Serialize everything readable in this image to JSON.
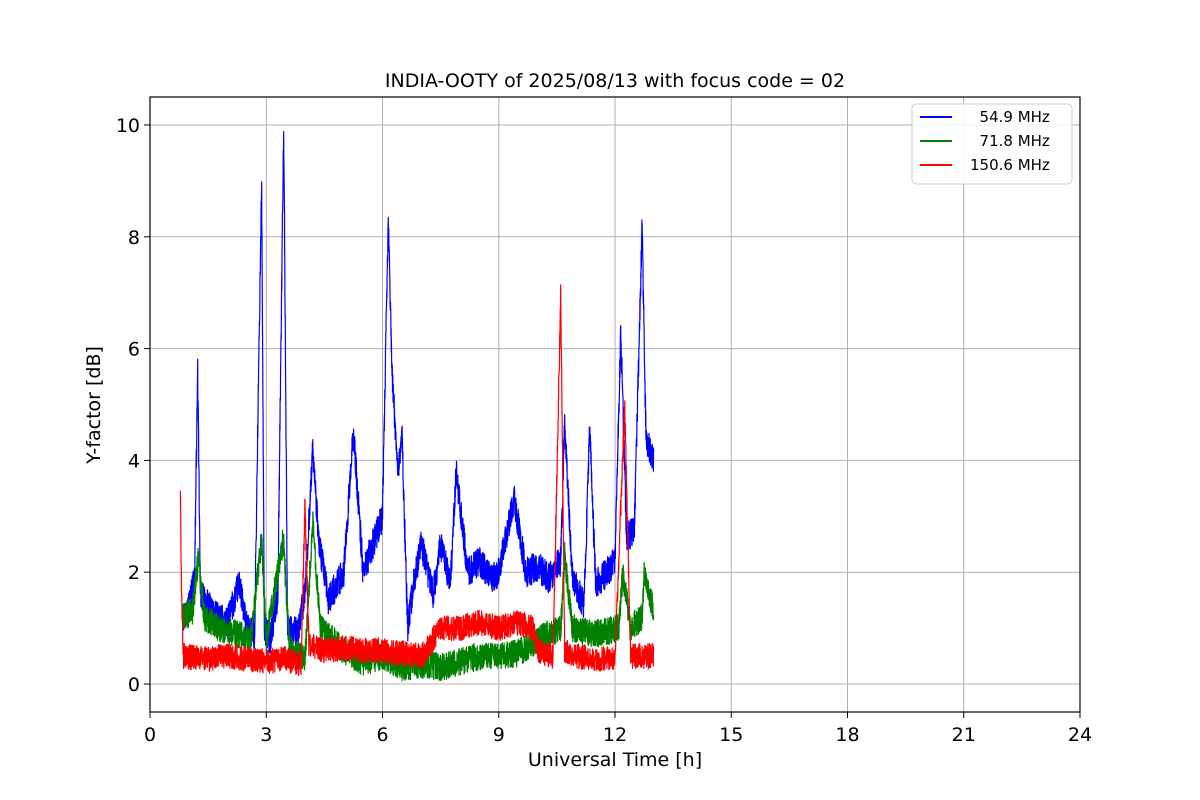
{
  "chart_data": {
    "type": "line",
    "title": "INDIA-OOTY of 2025/08/13 with focus code = 02",
    "xlabel": "Universal Time [h]",
    "ylabel": "Y-factor [dB]",
    "xlim": [
      0,
      24
    ],
    "ylim": [
      -0.5,
      10.5
    ],
    "xticks": [
      0,
      3,
      6,
      9,
      12,
      15,
      18,
      21,
      24
    ],
    "yticks": [
      0,
      2,
      4,
      6,
      8,
      10
    ],
    "grid": true,
    "legend_position": "upper right",
    "series": [
      {
        "name": "  54.9 MHz",
        "color": "#0000ff",
        "band": 0.55,
        "points": [
          [
            0.85,
            1.2
          ],
          [
            1.0,
            1.4
          ],
          [
            1.15,
            1.9
          ],
          [
            1.23,
            5.6
          ],
          [
            1.3,
            1.6
          ],
          [
            1.5,
            1.4
          ],
          [
            1.7,
            1.2
          ],
          [
            2.0,
            1.1
          ],
          [
            2.3,
            1.8
          ],
          [
            2.5,
            1.0
          ],
          [
            2.7,
            0.9
          ],
          [
            2.88,
            9.0
          ],
          [
            2.95,
            1.0
          ],
          [
            3.1,
            0.8
          ],
          [
            3.3,
            1.6
          ],
          [
            3.45,
            10.0
          ],
          [
            3.55,
            1.0
          ],
          [
            3.8,
            0.9
          ],
          [
            4.0,
            1.6
          ],
          [
            4.2,
            4.2
          ],
          [
            4.35,
            2.6
          ],
          [
            4.6,
            1.5
          ],
          [
            5.0,
            2.0
          ],
          [
            5.25,
            4.5
          ],
          [
            5.5,
            2.0
          ],
          [
            5.8,
            2.6
          ],
          [
            6.0,
            3.0
          ],
          [
            6.15,
            8.3
          ],
          [
            6.25,
            5.5
          ],
          [
            6.4,
            3.8
          ],
          [
            6.5,
            4.5
          ],
          [
            6.65,
            1.0
          ],
          [
            6.8,
            1.8
          ],
          [
            7.0,
            2.5
          ],
          [
            7.3,
            1.6
          ],
          [
            7.5,
            2.5
          ],
          [
            7.75,
            1.8
          ],
          [
            7.9,
            3.8
          ],
          [
            8.2,
            2.0
          ],
          [
            8.5,
            2.2
          ],
          [
            8.8,
            1.9
          ],
          [
            9.0,
            2.0
          ],
          [
            9.4,
            3.3
          ],
          [
            9.7,
            2.0
          ],
          [
            10.0,
            2.1
          ],
          [
            10.3,
            1.9
          ],
          [
            10.6,
            2.2
          ],
          [
            10.7,
            4.7
          ],
          [
            10.9,
            1.9
          ],
          [
            11.2,
            1.4
          ],
          [
            11.35,
            4.6
          ],
          [
            11.5,
            1.8
          ],
          [
            11.8,
            2.0
          ],
          [
            12.0,
            2.2
          ],
          [
            12.15,
            6.3
          ],
          [
            12.3,
            2.6
          ],
          [
            12.5,
            2.8
          ],
          [
            12.7,
            8.2
          ],
          [
            12.8,
            4.4
          ],
          [
            13.0,
            4.0
          ]
        ]
      },
      {
        "name": "  71.8 MHz",
        "color": "#008000",
        "band": 0.5,
        "points": [
          [
            0.85,
            1.2
          ],
          [
            1.1,
            1.3
          ],
          [
            1.25,
            2.3
          ],
          [
            1.4,
            1.2
          ],
          [
            1.8,
            1.0
          ],
          [
            2.2,
            0.9
          ],
          [
            2.6,
            0.8
          ],
          [
            2.88,
            2.6
          ],
          [
            3.0,
            0.8
          ],
          [
            3.44,
            2.6
          ],
          [
            3.6,
            0.6
          ],
          [
            4.0,
            0.5
          ],
          [
            4.2,
            2.9
          ],
          [
            4.4,
            1.0
          ],
          [
            5.0,
            0.6
          ],
          [
            5.5,
            0.4
          ],
          [
            6.0,
            0.5
          ],
          [
            6.5,
            0.3
          ],
          [
            7.0,
            0.35
          ],
          [
            7.5,
            0.3
          ],
          [
            8.0,
            0.4
          ],
          [
            8.5,
            0.5
          ],
          [
            9.0,
            0.5
          ],
          [
            9.5,
            0.55
          ],
          [
            10.0,
            0.8
          ],
          [
            10.6,
            1.0
          ],
          [
            10.7,
            2.3
          ],
          [
            10.9,
            1.0
          ],
          [
            11.5,
            0.9
          ],
          [
            12.1,
            1.0
          ],
          [
            12.2,
            2.0
          ],
          [
            12.4,
            1.0
          ],
          [
            12.7,
            1.2
          ],
          [
            12.75,
            2.0
          ],
          [
            13.0,
            1.3
          ]
        ]
      },
      {
        "name": "150.6 MHz",
        "color": "#ff0000",
        "band": 0.45,
        "points": [
          [
            0.78,
            3.5
          ],
          [
            0.82,
            1.5
          ],
          [
            0.85,
            0.5
          ],
          [
            1.5,
            0.45
          ],
          [
            2.0,
            0.5
          ],
          [
            2.5,
            0.45
          ],
          [
            3.0,
            0.4
          ],
          [
            3.5,
            0.45
          ],
          [
            3.9,
            0.35
          ],
          [
            4.0,
            3.2
          ],
          [
            4.1,
            0.7
          ],
          [
            4.5,
            0.6
          ],
          [
            5.0,
            0.65
          ],
          [
            5.5,
            0.6
          ],
          [
            6.0,
            0.6
          ],
          [
            6.5,
            0.55
          ],
          [
            7.0,
            0.5
          ],
          [
            7.3,
            0.8
          ],
          [
            7.5,
            1.0
          ],
          [
            8.0,
            1.0
          ],
          [
            8.5,
            1.1
          ],
          [
            9.0,
            1.0
          ],
          [
            9.5,
            1.1
          ],
          [
            9.9,
            1.0
          ],
          [
            10.0,
            0.6
          ],
          [
            10.4,
            0.5
          ],
          [
            10.6,
            7.0
          ],
          [
            10.7,
            0.6
          ],
          [
            11.0,
            0.5
          ],
          [
            11.5,
            0.45
          ],
          [
            12.0,
            0.45
          ],
          [
            12.25,
            5.0
          ],
          [
            12.4,
            0.5
          ],
          [
            13.0,
            0.5
          ]
        ]
      }
    ]
  }
}
